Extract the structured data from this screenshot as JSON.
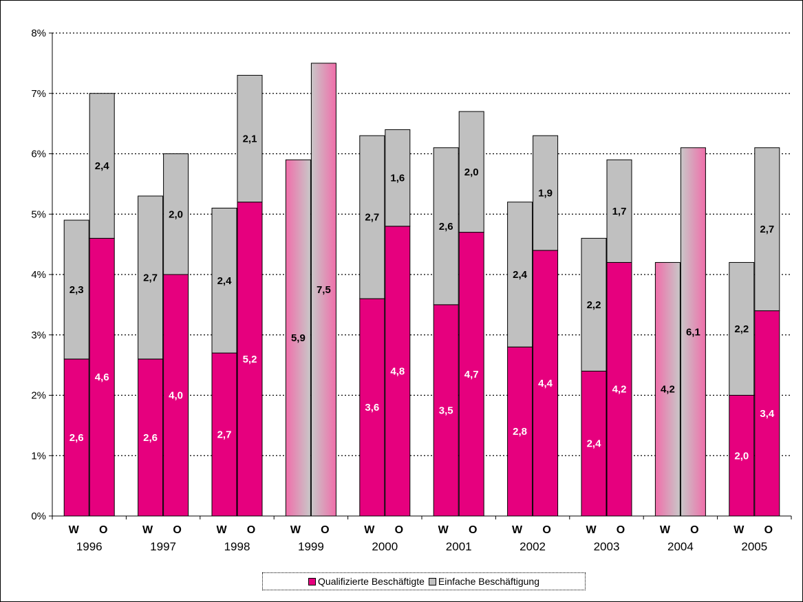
{
  "chart_data": {
    "type": "bar",
    "stacked": true,
    "y_axis": {
      "ylim": [
        0,
        8
      ],
      "tick_labels": [
        "0%",
        "1%",
        "2%",
        "3%",
        "4%",
        "5%",
        "6%",
        "7%",
        "8%"
      ],
      "grid": "dotted horizontal"
    },
    "groups": [
      {
        "year": "1996",
        "bars": [
          {
            "label": "W",
            "qualifiziert": 2.6,
            "einfach": 2.3,
            "qualifiziert_label": "2,6",
            "einfach_label": "2,3"
          },
          {
            "label": "O",
            "qualifiziert": 4.6,
            "einfach": 2.4,
            "qualifiziert_label": "4,6",
            "einfach_label": "2,4"
          }
        ]
      },
      {
        "year": "1997",
        "bars": [
          {
            "label": "W",
            "qualifiziert": 2.6,
            "einfach": 2.7,
            "qualifiziert_label": "2,6",
            "einfach_label": "2,7"
          },
          {
            "label": "O",
            "qualifiziert": 4.0,
            "einfach": 2.0,
            "qualifiziert_label": "4,0",
            "einfach_label": "2,0"
          }
        ]
      },
      {
        "year": "1998",
        "bars": [
          {
            "label": "W",
            "qualifiziert": 2.7,
            "einfach": 2.4,
            "qualifiziert_label": "2,7",
            "einfach_label": "2,4"
          },
          {
            "label": "O",
            "qualifiziert": 5.2,
            "einfach": 2.1,
            "qualifiziert_label": "5,2",
            "einfach_label": "2,1"
          }
        ]
      },
      {
        "year": "1999",
        "bars": [
          {
            "label": "W",
            "total": 5.9,
            "total_label": "5,9",
            "undifferentiated": true
          },
          {
            "label": "O",
            "total": 7.5,
            "total_label": "7,5",
            "undifferentiated": true
          }
        ]
      },
      {
        "year": "2000",
        "bars": [
          {
            "label": "W",
            "qualifiziert": 3.6,
            "einfach": 2.7,
            "qualifiziert_label": "3,6",
            "einfach_label": "2,7"
          },
          {
            "label": "O",
            "qualifiziert": 4.8,
            "einfach": 1.6,
            "qualifiziert_label": "4,8",
            "einfach_label": "1,6"
          }
        ]
      },
      {
        "year": "2001",
        "bars": [
          {
            "label": "W",
            "qualifiziert": 3.5,
            "einfach": 2.6,
            "qualifiziert_label": "3,5",
            "einfach_label": "2,6"
          },
          {
            "label": "O",
            "qualifiziert": 4.7,
            "einfach": 2.0,
            "qualifiziert_label": "4,7",
            "einfach_label": "2,0"
          }
        ]
      },
      {
        "year": "2002",
        "bars": [
          {
            "label": "W",
            "qualifiziert": 2.8,
            "einfach": 2.4,
            "qualifiziert_label": "2,8",
            "einfach_label": "2,4"
          },
          {
            "label": "O",
            "qualifiziert": 4.4,
            "einfach": 1.9,
            "qualifiziert_label": "4,4",
            "einfach_label": "1,9"
          }
        ]
      },
      {
        "year": "2003",
        "bars": [
          {
            "label": "W",
            "qualifiziert": 2.4,
            "einfach": 2.2,
            "qualifiziert_label": "2,4",
            "einfach_label": "2,2"
          },
          {
            "label": "O",
            "qualifiziert": 4.2,
            "einfach": 1.7,
            "qualifiziert_label": "4,2",
            "einfach_label": "1,7"
          }
        ]
      },
      {
        "year": "2004",
        "bars": [
          {
            "label": "W",
            "total": 4.2,
            "total_label": "4,2",
            "undifferentiated": true
          },
          {
            "label": "O",
            "total": 6.1,
            "total_label": "6,1",
            "undifferentiated": true
          }
        ]
      },
      {
        "year": "2005",
        "bars": [
          {
            "label": "W",
            "qualifiziert": 2.0,
            "einfach": 2.2,
            "qualifiziert_label": "2,0",
            "einfach_label": "2,2"
          },
          {
            "label": "O",
            "qualifiziert": 3.4,
            "einfach": 2.7,
            "qualifiziert_label": "3,4",
            "einfach_label": "2,7"
          }
        ]
      }
    ],
    "legend": [
      {
        "name": "Qualifizierte Beschäftigte",
        "color": "#E6007E"
      },
      {
        "name": "Einfache Beschäftigung",
        "color": "#C0C0C0"
      }
    ],
    "legend_placement": "bottom-center"
  },
  "colors": {
    "qualifiziert": "#E6007E",
    "einfach": "#C0C0C0",
    "undifferentiated_pink": "#F06EAA",
    "undifferentiated_grey": "#C8C8C8"
  }
}
